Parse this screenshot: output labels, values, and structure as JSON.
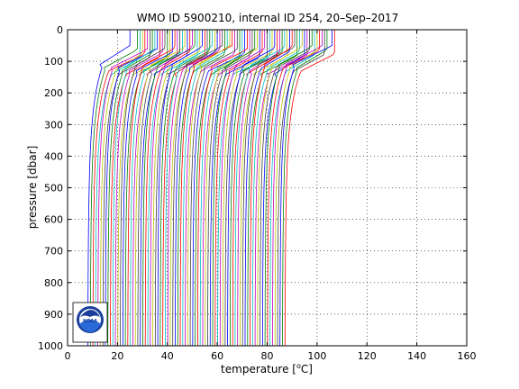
{
  "chart_data": {
    "type": "line",
    "title": "WMO ID 5900210, internal ID 254, 20–Sep–2017",
    "xlabel_prefix": "temperature [",
    "xlabel_sup": "o",
    "xlabel_suffix": "C]",
    "ylabel": "pressure [dbar]",
    "xlim": [
      0,
      160
    ],
    "ylim": [
      0,
      1000
    ],
    "y_reversed": true,
    "grid": "dotted",
    "x_ticks": [
      "0",
      "20",
      "40",
      "60",
      "80",
      "100",
      "120",
      "140",
      "160"
    ],
    "y_ticks": [
      "0",
      "100",
      "200",
      "300",
      "400",
      "500",
      "600",
      "700",
      "800",
      "900",
      "1000"
    ],
    "offset_profiles": {
      "description_note": "Waterfall of temperature profiles, each offset by +1 °C",
      "count": 80,
      "first_surface_temp": 27,
      "first_deep_temp": 8,
      "offset_step": 1,
      "thermocline_depth": 110
    },
    "series_colors": [
      "#0000ff",
      "#008000",
      "#ff0000",
      "#00bfbf",
      "#bf00bf",
      "#bfbf00",
      "#404040"
    ],
    "logo": "noaa-logo"
  }
}
